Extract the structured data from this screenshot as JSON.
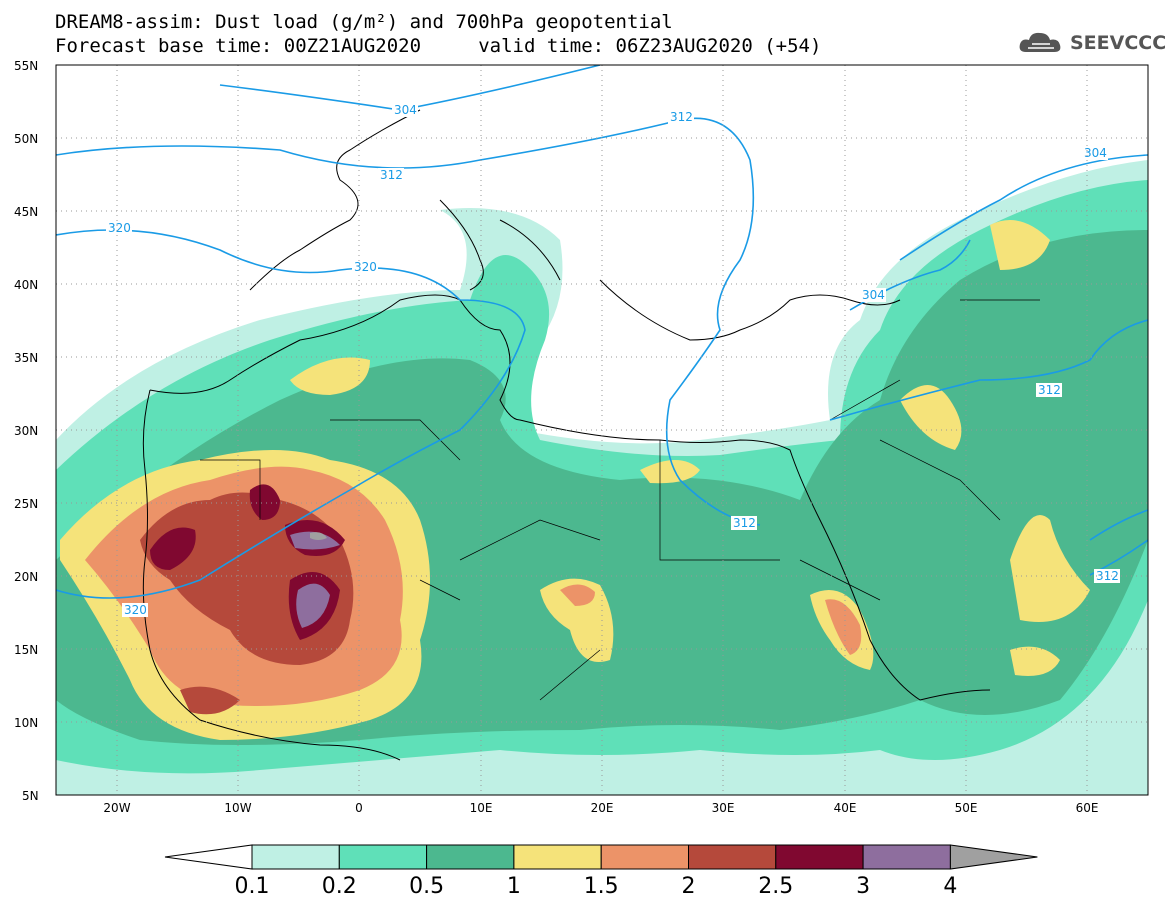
{
  "header": {
    "title_line1": "DREAM8-assim: Dust load (g/m²) and 700hPa geopotential",
    "title_line2": "Forecast base time: 00Z21AUG2020     valid time: 06Z23AUG2020 (+54)"
  },
  "logo": {
    "text": "SEEVCCC",
    "icon": "cloud-icon"
  },
  "map": {
    "lon_range": [
      -25,
      65
    ],
    "lat_range": [
      5,
      55
    ],
    "lat_ticks": [
      "55N",
      "50N",
      "45N",
      "40N",
      "35N",
      "30N",
      "25N",
      "20N",
      "15N",
      "10N",
      "5N"
    ],
    "lon_ticks": [
      "20W",
      "10W",
      "0",
      "10E",
      "20E",
      "30E",
      "40E",
      "50E",
      "60E"
    ],
    "contour_labels": [
      "304",
      "312",
      "312",
      "320",
      "320",
      "304",
      "304",
      "312",
      "312",
      "312",
      "320"
    ]
  },
  "colorbar": {
    "labels": [
      "0.1",
      "0.2",
      "0.5",
      "1",
      "1.5",
      "2",
      "2.5",
      "3",
      "4"
    ],
    "colors": [
      "#ffffff",
      "#bff0e4",
      "#5fe0b8",
      "#4cb88f",
      "#f5e37a",
      "#ec9368",
      "#b5493b",
      "#800830",
      "#8e6e9e",
      "#a0a0a0"
    ]
  },
  "palette": {
    "contour": "#1a9be6",
    "land_border": "#000000"
  }
}
